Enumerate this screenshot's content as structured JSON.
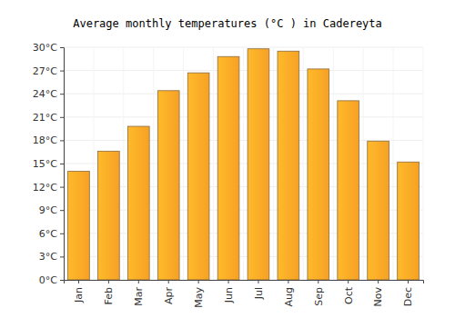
{
  "chart_data": {
    "type": "bar",
    "title": "Average monthly temperatures (°C ) in Cadereyta",
    "categories": [
      "Jan",
      "Feb",
      "Mar",
      "Apr",
      "May",
      "Jun",
      "Jul",
      "Aug",
      "Sep",
      "Oct",
      "Nov",
      "Dec"
    ],
    "values": [
      14.0,
      16.6,
      19.8,
      24.4,
      26.7,
      28.8,
      29.8,
      29.5,
      27.2,
      23.1,
      17.9,
      15.2
    ],
    "color": "#ffa726",
    "ylim": [
      0,
      30
    ],
    "yticks": [
      {
        "value": 0,
        "label": "0°C"
      },
      {
        "value": 3,
        "label": "3°C"
      },
      {
        "value": 6,
        "label": "6°C"
      },
      {
        "value": 9,
        "label": "9°C"
      },
      {
        "value": 12,
        "label": "12°C"
      },
      {
        "value": 15,
        "label": "15°C"
      },
      {
        "value": 18,
        "label": "18°C"
      },
      {
        "value": 21,
        "label": "21°C"
      },
      {
        "value": 24,
        "label": "24°C"
      },
      {
        "value": 27,
        "label": "27°C"
      },
      {
        "value": 30,
        "label": "30°C"
      }
    ],
    "grid": true
  }
}
